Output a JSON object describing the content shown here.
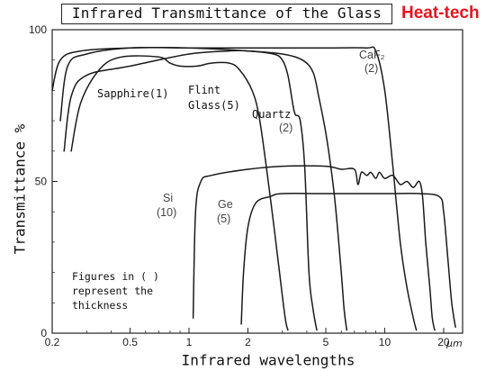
{
  "title": "Infrared Transmittance of the Glass",
  "brand": "Heat-tech",
  "note": "Figures in ( )\nrepresent the\nthickness",
  "chart_data": {
    "type": "line",
    "title": "Infrared Transmittance of the Glass",
    "xlabel": "Infrared wavelengths",
    "ylabel": "Transmittance %",
    "x_unit": "μm",
    "x_scale": "log",
    "xlim": [
      0.2,
      25
    ],
    "ylim": [
      0,
      100
    ],
    "x_ticks": [
      0.2,
      0.5,
      1,
      2,
      5,
      10,
      20
    ],
    "x_tick_labels": [
      "0.2",
      "0.5",
      "1",
      "2",
      "5",
      "10",
      "20"
    ],
    "y_ticks": [
      0,
      50,
      100
    ],
    "y_tick_labels": [
      "0",
      "50",
      "100"
    ],
    "series": [
      {
        "name": "Sapphire",
        "thickness": "(1)",
        "points": [
          [
            0.23,
            60
          ],
          [
            0.25,
            78
          ],
          [
            0.3,
            85
          ],
          [
            0.5,
            88
          ],
          [
            1,
            92
          ],
          [
            1.6,
            93
          ],
          [
            2,
            93
          ],
          [
            3,
            92
          ],
          [
            3.8,
            90
          ],
          [
            4.3,
            86
          ],
          [
            4.6,
            78
          ],
          [
            5,
            66
          ],
          [
            5.3,
            55
          ],
          [
            5.6,
            42
          ],
          [
            6,
            20
          ],
          [
            6.2,
            8
          ],
          [
            6.4,
            1
          ]
        ]
      },
      {
        "name": "Flint Glass",
        "thickness": "(5)",
        "points": [
          [
            0.25,
            60
          ],
          [
            0.28,
            76
          ],
          [
            0.35,
            87
          ],
          [
            0.45,
            91
          ],
          [
            0.7,
            91
          ],
          [
            0.8,
            89
          ],
          [
            0.9,
            88
          ],
          [
            1.1,
            88
          ],
          [
            1.3,
            89
          ],
          [
            1.6,
            89
          ],
          [
            1.8,
            87
          ],
          [
            2.1,
            80
          ],
          [
            2.3,
            70
          ],
          [
            2.6,
            45
          ],
          [
            2.9,
            20
          ],
          [
            3.1,
            5
          ],
          [
            3.2,
            1
          ]
        ]
      },
      {
        "name": "Quartz",
        "thickness": "(2)",
        "points": [
          [
            0.2,
            80
          ],
          [
            0.22,
            90
          ],
          [
            0.28,
            93
          ],
          [
            0.5,
            94
          ],
          [
            1,
            94
          ],
          [
            2,
            93
          ],
          [
            2.7,
            92
          ],
          [
            3,
            90
          ],
          [
            3.2,
            85
          ],
          [
            3.4,
            75
          ],
          [
            3.5,
            72
          ],
          [
            3.7,
            70
          ],
          [
            3.9,
            55
          ],
          [
            4.1,
            20
          ],
          [
            4.3,
            8
          ],
          [
            4.5,
            1
          ]
        ]
      },
      {
        "name": "CaF2",
        "thickness": "(2)",
        "points": [
          [
            0.22,
            70
          ],
          [
            0.24,
            88
          ],
          [
            0.3,
            92
          ],
          [
            0.5,
            94
          ],
          [
            1,
            94
          ],
          [
            2,
            94
          ],
          [
            5,
            94
          ],
          [
            8,
            94
          ],
          [
            9,
            93
          ],
          [
            10,
            80
          ],
          [
            11,
            55
          ],
          [
            12,
            30
          ],
          [
            13,
            15
          ],
          [
            14,
            5
          ],
          [
            14.5,
            1
          ]
        ]
      },
      {
        "name": "Si",
        "thickness": "(10)",
        "points": [
          [
            1.05,
            5
          ],
          [
            1.08,
            40
          ],
          [
            1.15,
            50
          ],
          [
            1.3,
            52
          ],
          [
            2,
            54
          ],
          [
            3,
            55
          ],
          [
            5,
            55
          ],
          [
            6,
            54
          ],
          [
            7,
            54
          ],
          [
            7.3,
            49
          ],
          [
            7.6,
            53
          ],
          [
            8.1,
            52
          ],
          [
            8.5,
            53
          ],
          [
            9,
            51
          ],
          [
            9.4,
            53
          ],
          [
            10,
            51
          ],
          [
            11,
            52
          ],
          [
            12,
            49
          ],
          [
            13,
            50
          ],
          [
            14,
            48
          ],
          [
            15,
            50
          ],
          [
            15.6,
            45
          ],
          [
            16.2,
            30
          ],
          [
            17,
            15
          ],
          [
            17.5,
            5
          ],
          [
            18,
            1
          ]
        ]
      },
      {
        "name": "Ge",
        "thickness": "(5)",
        "points": [
          [
            1.85,
            3
          ],
          [
            1.9,
            20
          ],
          [
            2,
            35
          ],
          [
            2.2,
            43
          ],
          [
            2.6,
            45
          ],
          [
            3,
            46
          ],
          [
            5,
            46
          ],
          [
            10,
            46
          ],
          [
            15,
            46
          ],
          [
            19,
            45
          ],
          [
            20,
            40
          ],
          [
            21,
            25
          ],
          [
            22,
            10
          ],
          [
            23,
            2
          ]
        ]
      }
    ]
  }
}
